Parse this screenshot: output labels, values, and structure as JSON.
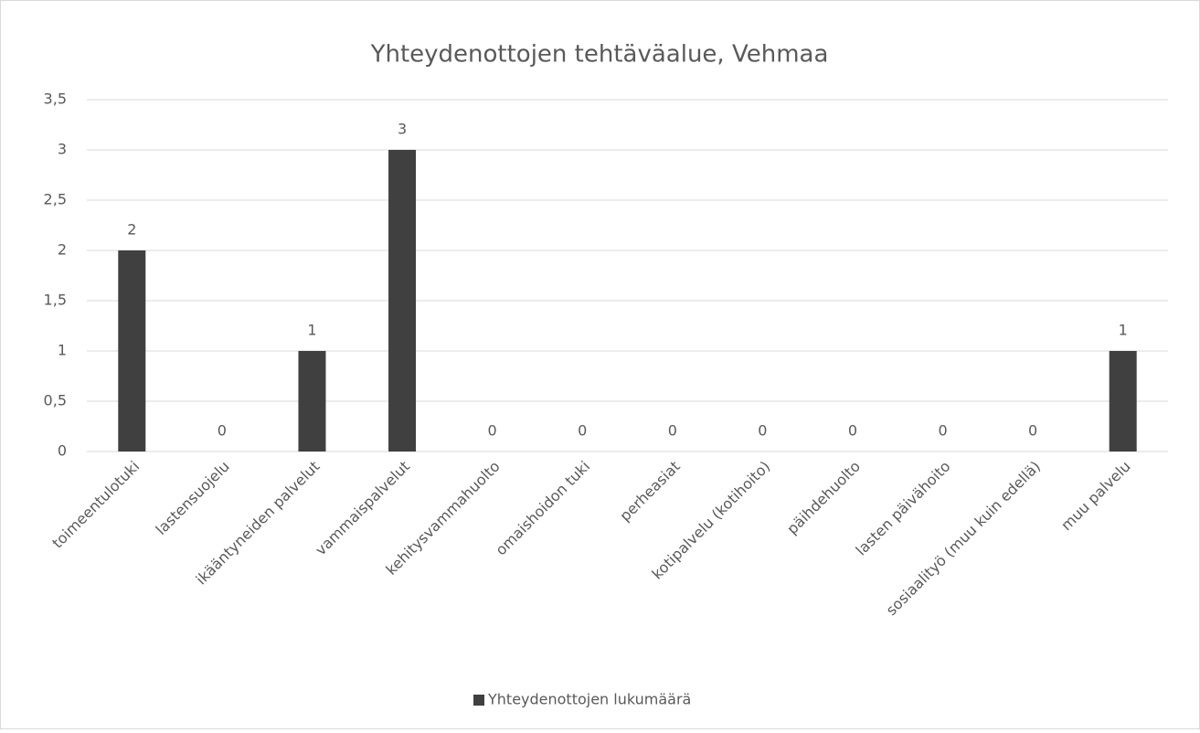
{
  "chart_data": {
    "type": "bar",
    "title": "Yhteydenottojen tehtäväalue, Vehmaa",
    "categories": [
      "toimeentulotuki",
      "lastensuojelu",
      "ikääntyneiden palvelut",
      "vammaispalvelut",
      "kehitysvammahuolto",
      "omaishoidon tuki",
      "perheasiat",
      "kotipalvelu (kotihoito)",
      "päihdehuolto",
      "lasten päivähoito",
      "sosiaalityö (muu kuin edellä)",
      "muu palvelu"
    ],
    "series": [
      {
        "name": "Yhteydenottojen lukumäärä",
        "color": "#404040",
        "values": [
          2,
          0,
          1,
          3,
          0,
          0,
          0,
          0,
          0,
          0,
          0,
          1
        ]
      }
    ],
    "ylim": [
      0,
      3.5
    ],
    "yticks": [
      0,
      {
        "value": 0.5,
        "label": "0,5"
      },
      1,
      {
        "value": 1.5,
        "label": "1,5"
      },
      2,
      {
        "value": 2.5,
        "label": "2,5"
      },
      3,
      {
        "value": 3.5,
        "label": "3,5"
      }
    ],
    "grid": true,
    "legend": "bottom"
  }
}
